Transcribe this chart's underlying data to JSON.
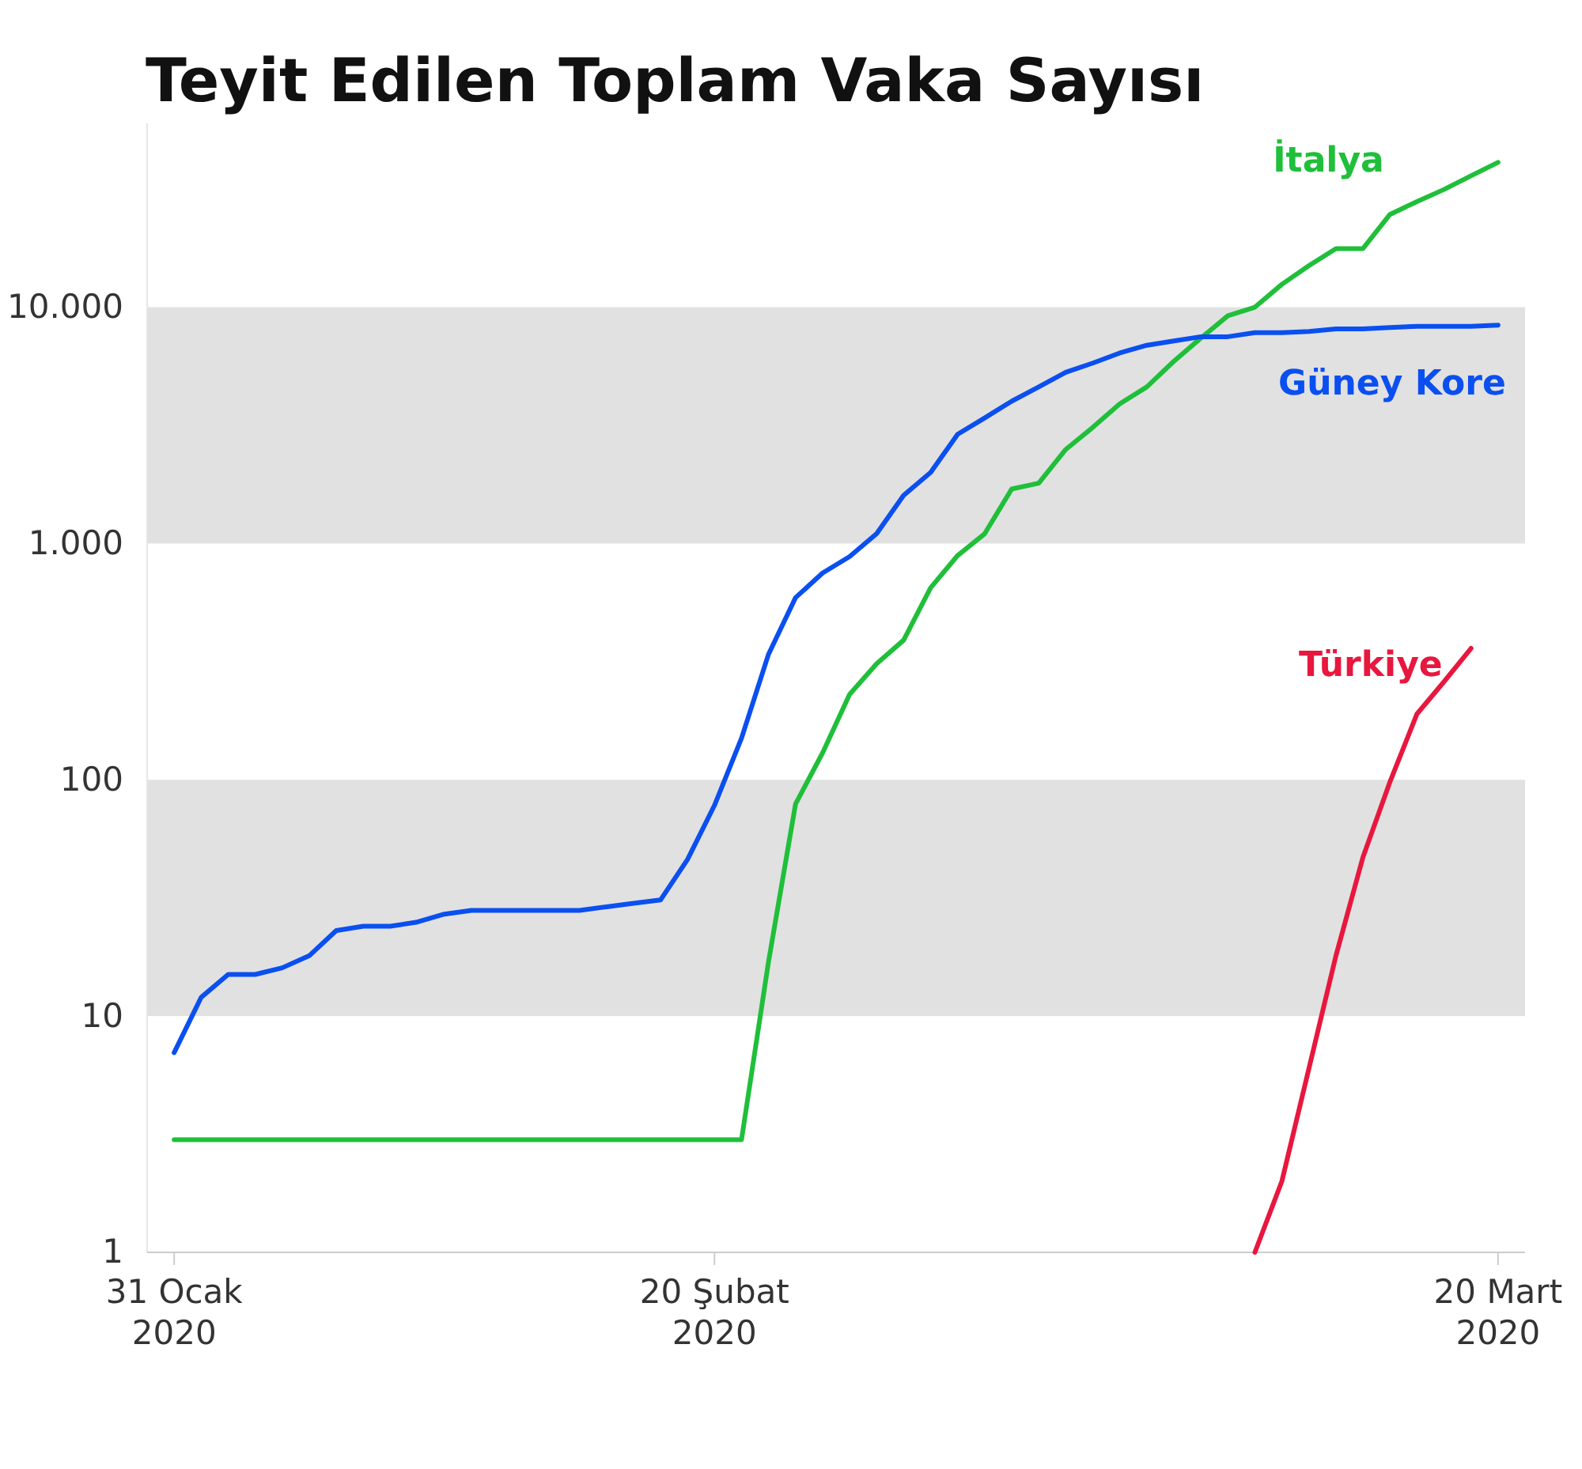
{
  "chart_data": {
    "type": "line",
    "title": "Teyit Edilen Toplam Vaka Sayısı",
    "x": [
      "2020-01-31",
      "2020-02-01",
      "2020-02-02",
      "2020-02-03",
      "2020-02-04",
      "2020-02-05",
      "2020-02-06",
      "2020-02-07",
      "2020-02-08",
      "2020-02-09",
      "2020-02-10",
      "2020-02-11",
      "2020-02-12",
      "2020-02-13",
      "2020-02-14",
      "2020-02-15",
      "2020-02-16",
      "2020-02-17",
      "2020-02-18",
      "2020-02-19",
      "2020-02-20",
      "2020-02-21",
      "2020-02-22",
      "2020-02-23",
      "2020-02-24",
      "2020-02-25",
      "2020-02-26",
      "2020-02-27",
      "2020-02-28",
      "2020-02-29",
      "2020-03-01",
      "2020-03-02",
      "2020-03-03",
      "2020-03-04",
      "2020-03-05",
      "2020-03-06",
      "2020-03-07",
      "2020-03-08",
      "2020-03-09",
      "2020-03-10",
      "2020-03-11",
      "2020-03-12",
      "2020-03-13",
      "2020-03-14",
      "2020-03-15",
      "2020-03-16",
      "2020-03-17",
      "2020-03-18",
      "2020-03-19",
      "2020-03-20"
    ],
    "series": [
      {
        "name": "İtalya",
        "color": "#1fbf3a",
        "values": [
          3,
          3,
          3,
          3,
          3,
          3,
          3,
          3,
          3,
          3,
          3,
          3,
          3,
          3,
          3,
          3,
          3,
          3,
          3,
          3,
          3,
          3,
          17,
          79,
          130,
          230,
          310,
          390,
          650,
          890,
          1100,
          1700,
          1800,
          2500,
          3100,
          3900,
          4600,
          5900,
          7400,
          9200,
          10000,
          12500,
          15000,
          17700,
          17700,
          24700,
          28000,
          31500,
          36000,
          41000
        ]
      },
      {
        "name": "Güney Kore",
        "color": "#0a4ff0",
        "values": [
          7,
          12,
          15,
          15,
          16,
          18,
          23,
          24,
          24,
          25,
          27,
          28,
          28,
          28,
          28,
          28,
          29,
          30,
          31,
          46,
          78,
          150,
          340,
          590,
          750,
          880,
          1100,
          1600,
          2000,
          2900,
          3400,
          4000,
          4600,
          5300,
          5800,
          6400,
          6900,
          7200,
          7500,
          7500,
          7800,
          7800,
          7900,
          8100,
          8100,
          8200,
          8300,
          8300,
          8300,
          8400
        ]
      },
      {
        "name": "Türkiye",
        "color": "#e8173e",
        "x": [
          "2020-03-11",
          "2020-03-12",
          "2020-03-13",
          "2020-03-14",
          "2020-03-15",
          "2020-03-16",
          "2020-03-17",
          "2020-03-18",
          "2020-03-19"
        ],
        "values": [
          1,
          2,
          6,
          18,
          47,
          98,
          190,
          260,
          360
        ]
      }
    ],
    "log": true,
    "xlim": [
      "2020-01-30",
      "2020-03-21"
    ],
    "xticks": [
      {
        "value": "2020-01-31",
        "label": "31 Ocak\n2020"
      },
      {
        "value": "2020-02-20",
        "label": "20 Şubat\n2020"
      },
      {
        "value": "2020-03-20",
        "label": "20 Mart\n2020"
      }
    ],
    "ylim": [
      1,
      60000
    ],
    "yticks": [
      1,
      10,
      100,
      {
        "value": 1000,
        "label": "1.000"
      },
      {
        "value": 10000,
        "label": "10.000"
      }
    ],
    "bands": [
      {
        "axis": "y",
        "from": 10,
        "to": 100,
        "color": "#e1e1e1"
      },
      {
        "axis": "y",
        "from": 1000,
        "to": 10000,
        "color": "#e1e1e1"
      }
    ],
    "grid": false,
    "legend": false,
    "marker": "none",
    "line_style": "solid"
  }
}
